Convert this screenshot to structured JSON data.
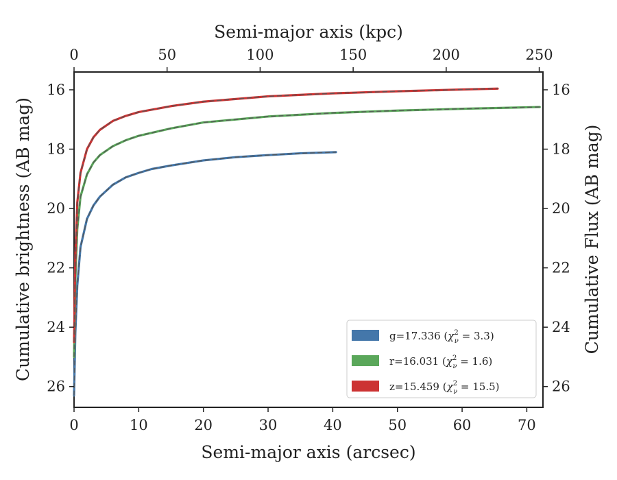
{
  "chart_data": {
    "type": "line",
    "xlabel": "Semi-major axis (arcsec)",
    "ylabel": "Cumulative brightness (AB mag)",
    "top_xlabel": "Semi-major axis (kpc)",
    "right_ylabel": "Cumulative Flux (AB mag)",
    "xlim": [
      0,
      72.5
    ],
    "ylim": [
      26.7,
      15.4
    ],
    "y_inverted": true,
    "top_xlim": [
      0,
      252
    ],
    "x_ticks": [
      "0",
      "10",
      "20",
      "30",
      "40",
      "50",
      "60",
      "70"
    ],
    "top_x_ticks": [
      "0",
      "50",
      "100",
      "150",
      "200",
      "250"
    ],
    "y_ticks": [
      "16",
      "18",
      "20",
      "22",
      "24",
      "26"
    ],
    "right_y_ticks": [
      "16",
      "18",
      "20",
      "22",
      "24",
      "26"
    ],
    "legend_position": "lower-right",
    "grid": false,
    "series": [
      {
        "name": "g=17.336",
        "chi_label": "3.3",
        "color": "#4477aa",
        "fit_style": "dashed",
        "x": [
          0,
          0.2,
          0.5,
          1,
          2,
          3,
          4,
          6,
          8,
          10,
          12,
          15,
          20,
          25,
          30,
          35,
          40.5
        ],
        "y": [
          26.3,
          24.2,
          22.6,
          21.3,
          20.35,
          19.9,
          19.6,
          19.2,
          18.95,
          18.8,
          18.67,
          18.55,
          18.38,
          18.27,
          18.2,
          18.14,
          18.1
        ]
      },
      {
        "name": "r=16.031",
        "chi_label": "1.6",
        "color": "#5aa75a",
        "fit_style": "dashed",
        "x": [
          0,
          0.2,
          0.5,
          1,
          2,
          3,
          4,
          6,
          8,
          10,
          15,
          20,
          30,
          40,
          50,
          60,
          72
        ],
        "y": [
          25.0,
          22.4,
          20.7,
          19.6,
          18.85,
          18.45,
          18.2,
          17.9,
          17.7,
          17.55,
          17.3,
          17.1,
          16.9,
          16.78,
          16.7,
          16.64,
          16.58
        ]
      },
      {
        "name": "z=15.459",
        "chi_label": "15.5",
        "color": "#cc3333",
        "fit_style": "dashed",
        "x": [
          0,
          0.2,
          0.5,
          1,
          2,
          3,
          4,
          6,
          8,
          10,
          15,
          20,
          30,
          40,
          50,
          60,
          65.5
        ],
        "y": [
          24.5,
          21.6,
          19.8,
          18.8,
          18.0,
          17.6,
          17.35,
          17.05,
          16.88,
          16.75,
          16.55,
          16.4,
          16.22,
          16.12,
          16.05,
          15.99,
          15.96
        ]
      }
    ]
  }
}
